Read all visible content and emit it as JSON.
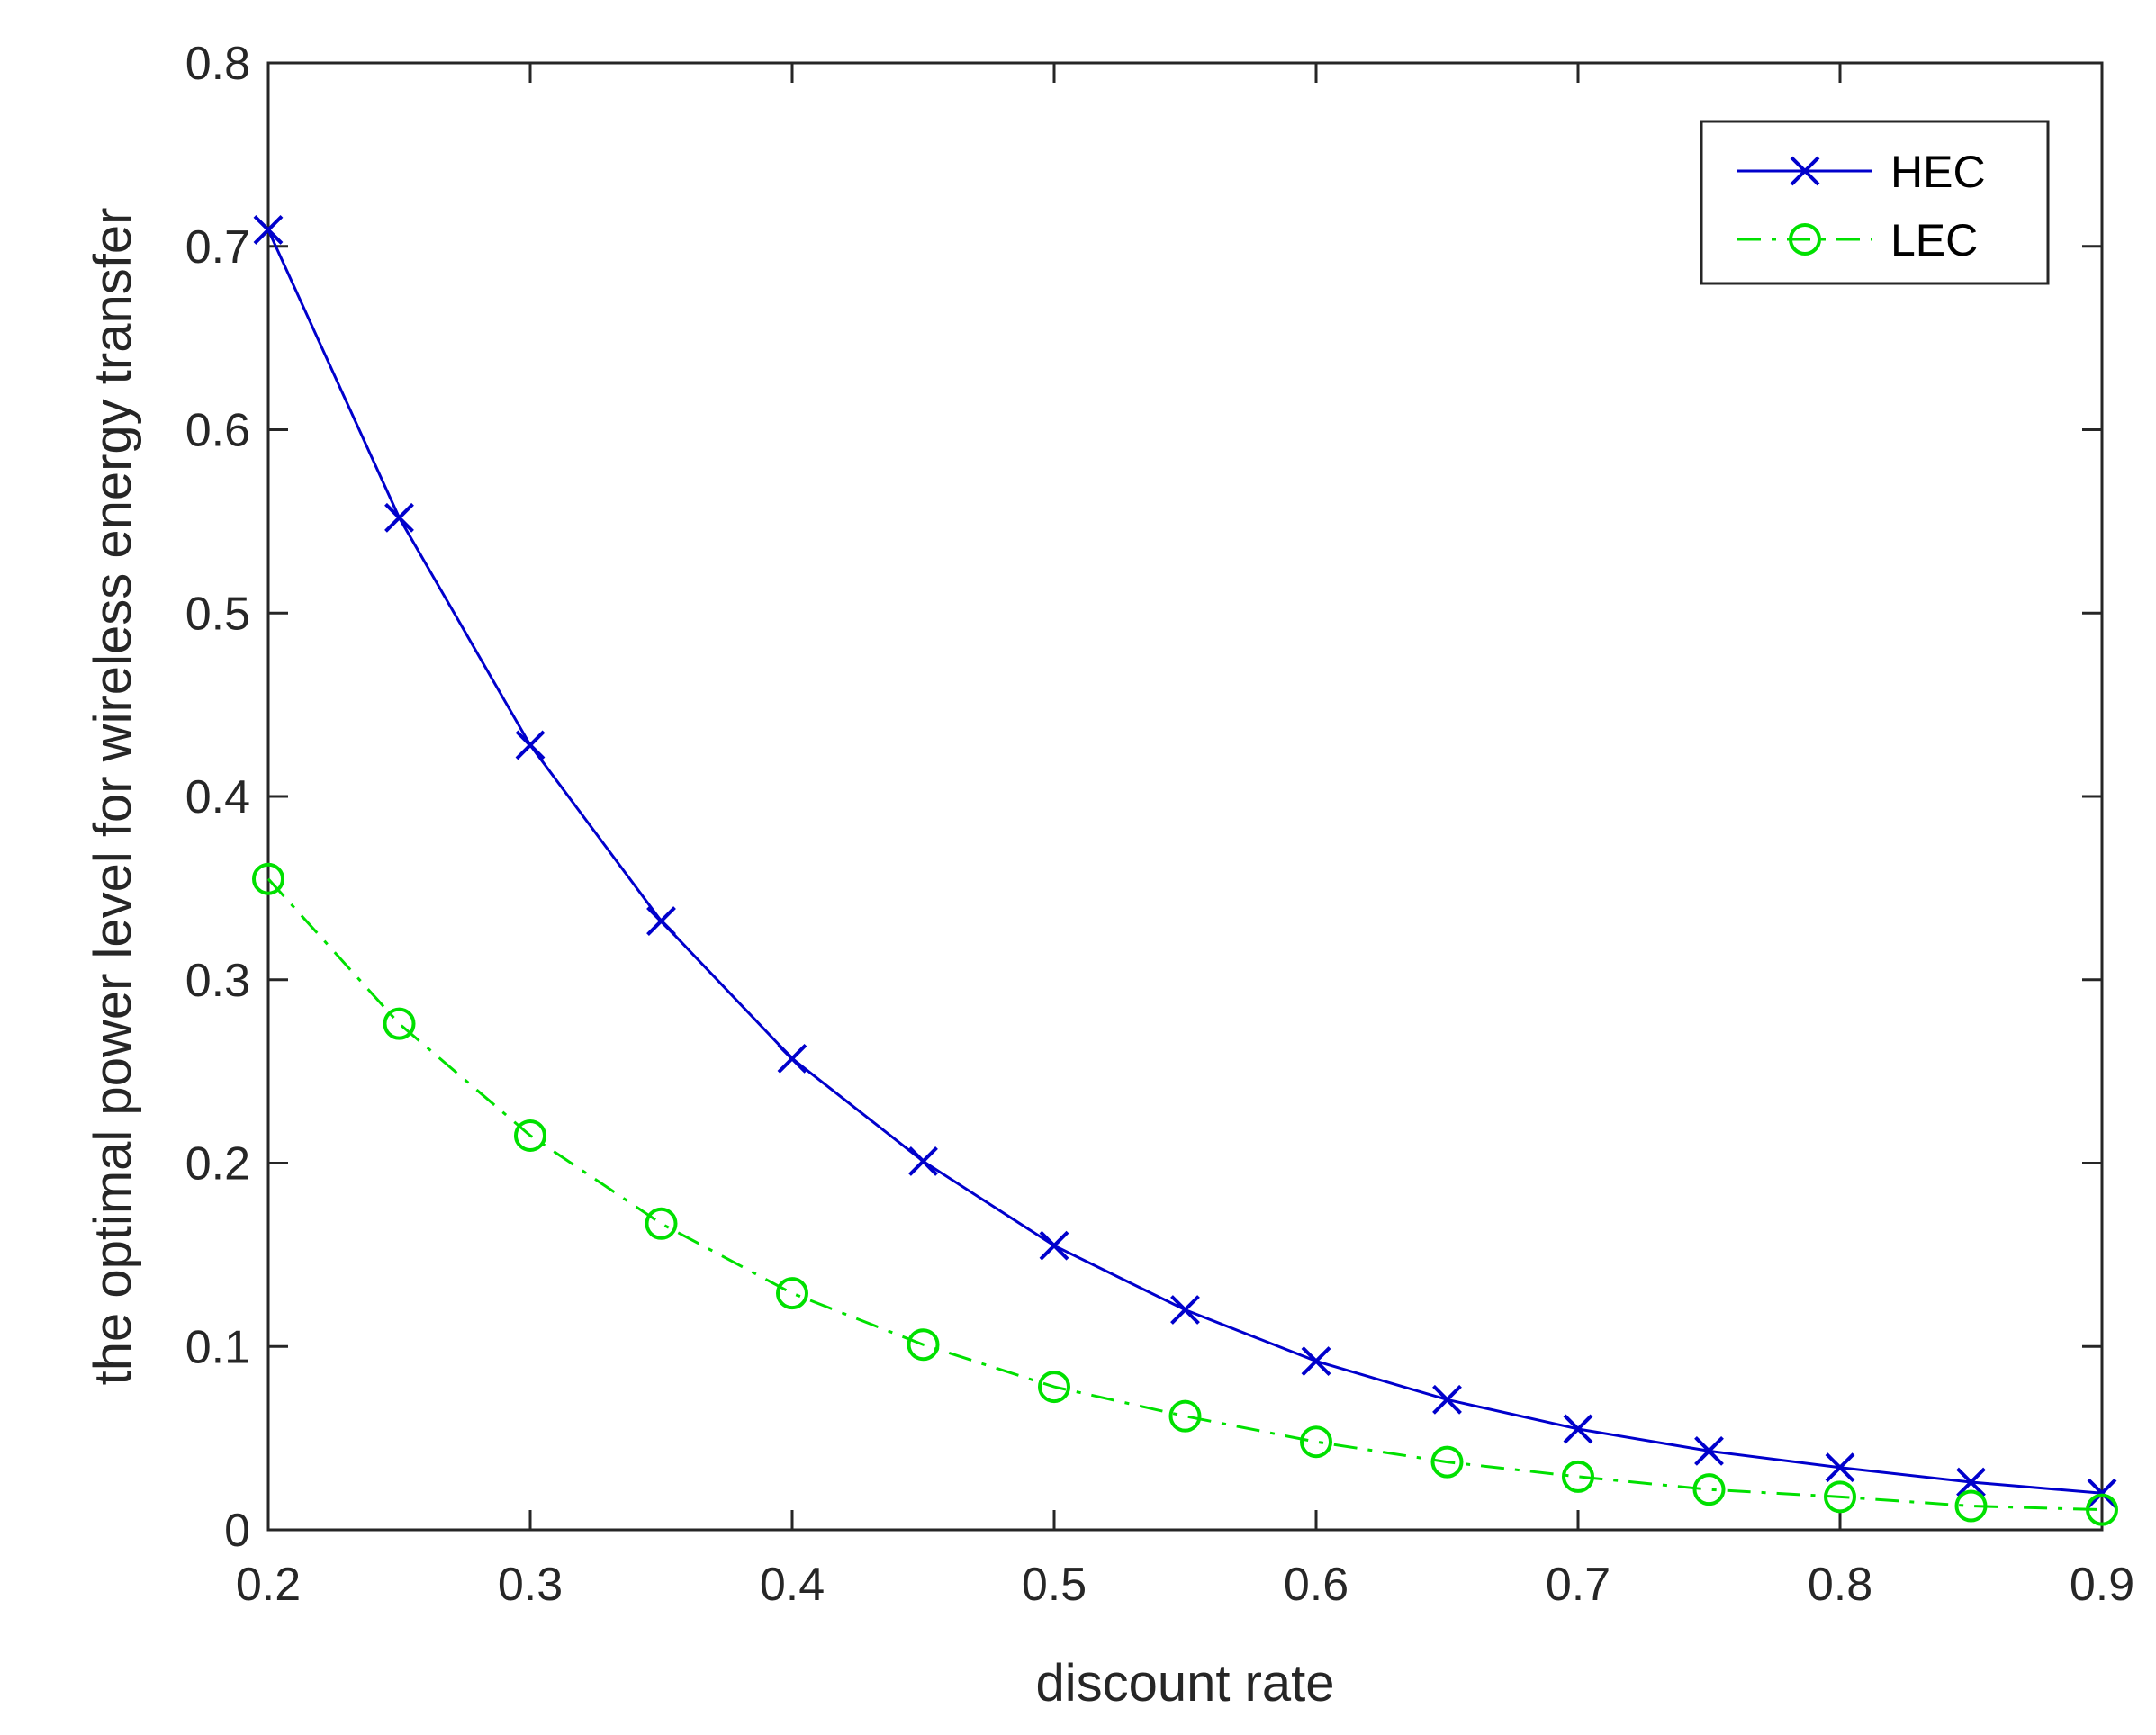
{
  "chart_data": {
    "type": "line",
    "title": "",
    "xlabel": "discount rate",
    "ylabel": "the optimal power level for wireless energy transfer",
    "xlim": [
      0.2,
      0.9
    ],
    "ylim": [
      0,
      0.8
    ],
    "xticks": [
      "0.2",
      "0.3",
      "0.4",
      "0.5",
      "0.6",
      "0.7",
      "0.8",
      "0.9"
    ],
    "yticks": [
      "0",
      "0.1",
      "0.2",
      "0.3",
      "0.4",
      "0.5",
      "0.6",
      "0.7",
      "0.8"
    ],
    "grid": false,
    "legend_position": "top-right",
    "x": [
      0.2,
      0.25,
      0.3,
      0.35,
      0.4,
      0.45,
      0.5,
      0.55,
      0.6,
      0.65,
      0.7,
      0.75,
      0.8,
      0.85,
      0.9
    ],
    "series": [
      {
        "name": "HEC",
        "color": "#0000cc",
        "line_style": "solid",
        "marker": "x",
        "values": [
          0.709,
          0.552,
          0.428,
          0.332,
          0.257,
          0.201,
          0.155,
          0.12,
          0.092,
          0.071,
          0.055,
          0.043,
          0.034,
          0.026,
          0.02
        ]
      },
      {
        "name": "LEC",
        "color": "#00e000",
        "line_style": "dash-dot",
        "marker": "circle",
        "values": [
          0.355,
          0.276,
          0.215,
          0.167,
          0.129,
          0.101,
          0.078,
          0.062,
          0.048,
          0.037,
          0.029,
          0.022,
          0.018,
          0.013,
          0.011
        ]
      }
    ]
  }
}
